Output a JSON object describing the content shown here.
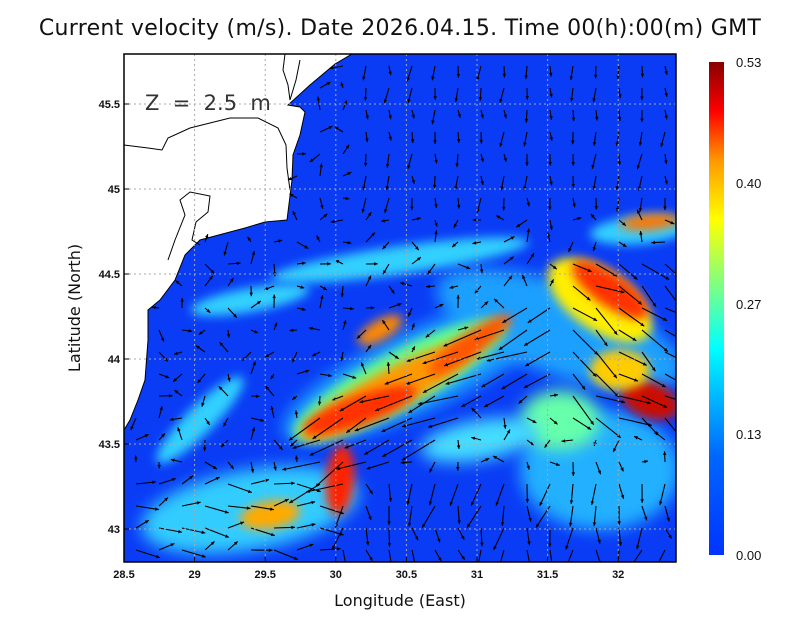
{
  "title": "Current velocity (m/s). Date 2026.04.15. Time 00(h):00(m) GMT",
  "chart_data": {
    "type": "heatmap",
    "variant": "current velocity magnitude with vector arrows over land/sea map",
    "title": "Current velocity (m/s). Date 2026.04.15. Time 00(h):00(m) GMT",
    "annotation": "Z  =  2.5  m",
    "xlabel": "Longitude (East)",
    "ylabel": "Latitude (North)",
    "xlim": [
      28.5,
      32.4
    ],
    "ylim": [
      42.8,
      45.8
    ],
    "x_ticks": [
      "28.5",
      "29",
      "29.5",
      "30",
      "30.5",
      "31",
      "31.5",
      "32"
    ],
    "y_ticks": [
      "45.5",
      "45",
      "44.5",
      "44",
      "43.5",
      "43"
    ],
    "grid": true,
    "colorbar": {
      "ticks": [
        "0.53",
        "0.40",
        "0.27",
        "0.13",
        "0.00"
      ],
      "range": [
        0.0,
        0.53
      ],
      "colormap": [
        "#0033ff",
        "#0099ff",
        "#00ffff",
        "#99ff66",
        "#ffff00",
        "#ff9900",
        "#ff0000",
        "#880000"
      ]
    },
    "land_color": "#ffffff",
    "arrow_color": "#000000"
  }
}
